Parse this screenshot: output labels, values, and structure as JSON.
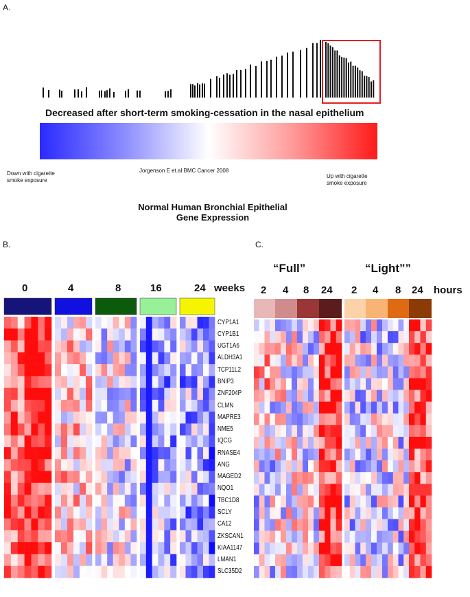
{
  "panel_a": {
    "label": "A.",
    "title": "Decreased after short-term smoking-cessation in the nasal epithelium",
    "left_note": [
      "Down with cigarette",
      "smoke exposure"
    ],
    "center_note": "Jorgenson E et.al BMC Cancer 2008",
    "right_note": [
      "Up with cigarette",
      "smoke exposure"
    ],
    "caption": [
      "Normal Human Bronchial Epithelial",
      "Gene Expression"
    ],
    "colors": {
      "low": "#2a2aff",
      "mid": "#ffffff",
      "high": "#ff2020",
      "highlight_box": "#e02020"
    }
  },
  "panel_b": {
    "label": "B.",
    "timepoints": [
      "0",
      "4",
      "8",
      "16",
      "24"
    ],
    "unit": "weeks",
    "group_colors": [
      "#14147a",
      "#1010e0",
      "#0c5a0c",
      "#98f098",
      "#f5f500"
    ],
    "genes": [
      "CYP1A1",
      "CYP1B1",
      "UGT1A6",
      "ALDH3A1",
      "TCP11L2",
      "BNIP3",
      "ZNF204P",
      "CLMN",
      "MAPRE3",
      "NME5",
      "IQCG",
      "RNASE4",
      "ANG",
      "MAGED2",
      "NQO1",
      "TBC1D8",
      "SCLY",
      "CA12",
      "ZKSCAN1",
      "KIAA1147",
      "LMAN1",
      "SLC35D2"
    ]
  },
  "panel_c": {
    "label": "C.",
    "conditions": [
      "“Full”",
      "“Light””"
    ],
    "timepoints": [
      "2",
      "4",
      "8",
      "24",
      "2",
      "4",
      "8",
      "24"
    ],
    "unit": "hours",
    "group_colors": [
      "#e8b8b8",
      "#d08c8c",
      "#9a3636",
      "#5a1c1c",
      "#fcd2a8",
      "#f8b474",
      "#e06a14",
      "#8c3a06"
    ]
  }
}
